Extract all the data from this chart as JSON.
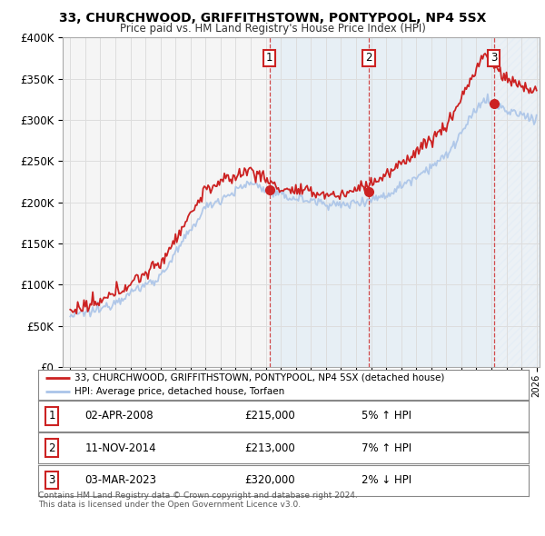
{
  "title": "33, CHURCHWOOD, GRIFFITHSTOWN, PONTYPOOL, NP4 5SX",
  "subtitle": "Price paid vs. HM Land Registry's House Price Index (HPI)",
  "ylim": [
    0,
    400000
  ],
  "yticks": [
    0,
    50000,
    100000,
    150000,
    200000,
    250000,
    300000,
    350000,
    400000
  ],
  "xlim_start": 1994.5,
  "xlim_end": 2026.2,
  "hpi_color": "#aac4e8",
  "price_color": "#cc2222",
  "bg_color": "#f5f5f5",
  "grid_color": "#dddddd",
  "shade_color": "#d8e8f5",
  "transactions": [
    {
      "num": 1,
      "date": "02-APR-2008",
      "price": 215000,
      "pct": "5%",
      "direction": "↑",
      "year_x": 2008.25
    },
    {
      "num": 2,
      "date": "11-NOV-2014",
      "price": 213000,
      "pct": "7%",
      "direction": "↑",
      "year_x": 2014.85
    },
    {
      "num": 3,
      "date": "03-MAR-2023",
      "price": 320000,
      "pct": "2%",
      "direction": "↓",
      "year_x": 2023.17
    }
  ],
  "sale_years": [
    2008.25,
    2014.85,
    2023.17
  ],
  "sale_prices": [
    215000,
    213000,
    320000
  ],
  "legend_label_price": "33, CHURCHWOOD, GRIFFITHSTOWN, PONTYPOOL, NP4 5SX (detached house)",
  "legend_label_hpi": "HPI: Average price, detached house, Torfaen",
  "footer_line1": "Contains HM Land Registry data © Crown copyright and database right 2024.",
  "footer_line2": "This data is licensed under the Open Government Licence v3.0.",
  "table_rows": [
    [
      "1",
      "02-APR-2008",
      "£215,000",
      "5% ↑ HPI"
    ],
    [
      "2",
      "11-NOV-2014",
      "£213,000",
      "7% ↑ HPI"
    ],
    [
      "3",
      "03-MAR-2023",
      "£320,000",
      "2% ↓ HPI"
    ]
  ]
}
